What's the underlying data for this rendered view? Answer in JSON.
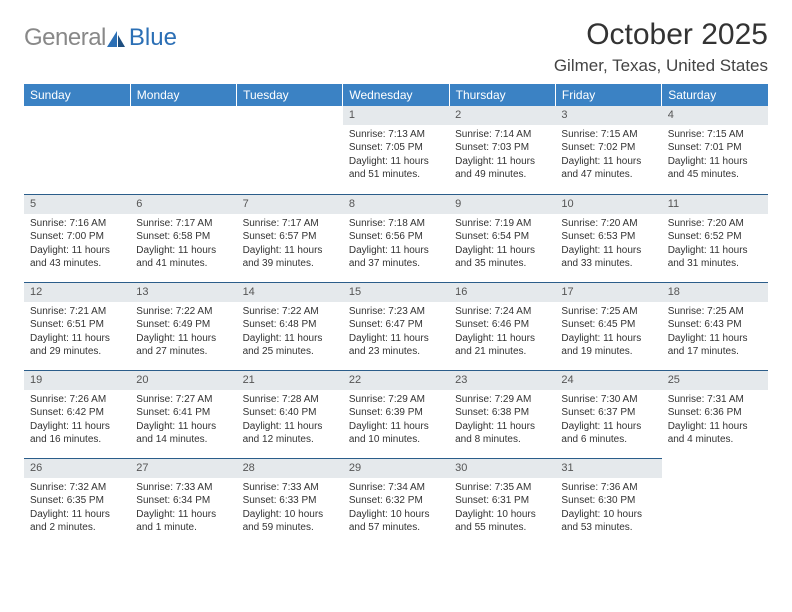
{
  "logo": {
    "text1": "General",
    "text2": "Blue"
  },
  "title": "October 2025",
  "location": "Gilmer, Texas, United States",
  "colors": {
    "header_bg": "#3b82c4",
    "header_text": "#ffffff",
    "daynum_bg": "#e5e9ec",
    "day_border": "#2b5d8a",
    "body_text": "#333333",
    "logo_gray": "#888888",
    "logo_blue": "#2b6fb5"
  },
  "weekdays": [
    "Sunday",
    "Monday",
    "Tuesday",
    "Wednesday",
    "Thursday",
    "Friday",
    "Saturday"
  ],
  "leading_blanks": 3,
  "days": [
    {
      "n": 1,
      "sunrise": "7:13 AM",
      "sunset": "7:05 PM",
      "daylight": "11 hours and 51 minutes."
    },
    {
      "n": 2,
      "sunrise": "7:14 AM",
      "sunset": "7:03 PM",
      "daylight": "11 hours and 49 minutes."
    },
    {
      "n": 3,
      "sunrise": "7:15 AM",
      "sunset": "7:02 PM",
      "daylight": "11 hours and 47 minutes."
    },
    {
      "n": 4,
      "sunrise": "7:15 AM",
      "sunset": "7:01 PM",
      "daylight": "11 hours and 45 minutes."
    },
    {
      "n": 5,
      "sunrise": "7:16 AM",
      "sunset": "7:00 PM",
      "daylight": "11 hours and 43 minutes."
    },
    {
      "n": 6,
      "sunrise": "7:17 AM",
      "sunset": "6:58 PM",
      "daylight": "11 hours and 41 minutes."
    },
    {
      "n": 7,
      "sunrise": "7:17 AM",
      "sunset": "6:57 PM",
      "daylight": "11 hours and 39 minutes."
    },
    {
      "n": 8,
      "sunrise": "7:18 AM",
      "sunset": "6:56 PM",
      "daylight": "11 hours and 37 minutes."
    },
    {
      "n": 9,
      "sunrise": "7:19 AM",
      "sunset": "6:54 PM",
      "daylight": "11 hours and 35 minutes."
    },
    {
      "n": 10,
      "sunrise": "7:20 AM",
      "sunset": "6:53 PM",
      "daylight": "11 hours and 33 minutes."
    },
    {
      "n": 11,
      "sunrise": "7:20 AM",
      "sunset": "6:52 PM",
      "daylight": "11 hours and 31 minutes."
    },
    {
      "n": 12,
      "sunrise": "7:21 AM",
      "sunset": "6:51 PM",
      "daylight": "11 hours and 29 minutes."
    },
    {
      "n": 13,
      "sunrise": "7:22 AM",
      "sunset": "6:49 PM",
      "daylight": "11 hours and 27 minutes."
    },
    {
      "n": 14,
      "sunrise": "7:22 AM",
      "sunset": "6:48 PM",
      "daylight": "11 hours and 25 minutes."
    },
    {
      "n": 15,
      "sunrise": "7:23 AM",
      "sunset": "6:47 PM",
      "daylight": "11 hours and 23 minutes."
    },
    {
      "n": 16,
      "sunrise": "7:24 AM",
      "sunset": "6:46 PM",
      "daylight": "11 hours and 21 minutes."
    },
    {
      "n": 17,
      "sunrise": "7:25 AM",
      "sunset": "6:45 PM",
      "daylight": "11 hours and 19 minutes."
    },
    {
      "n": 18,
      "sunrise": "7:25 AM",
      "sunset": "6:43 PM",
      "daylight": "11 hours and 17 minutes."
    },
    {
      "n": 19,
      "sunrise": "7:26 AM",
      "sunset": "6:42 PM",
      "daylight": "11 hours and 16 minutes."
    },
    {
      "n": 20,
      "sunrise": "7:27 AM",
      "sunset": "6:41 PM",
      "daylight": "11 hours and 14 minutes."
    },
    {
      "n": 21,
      "sunrise": "7:28 AM",
      "sunset": "6:40 PM",
      "daylight": "11 hours and 12 minutes."
    },
    {
      "n": 22,
      "sunrise": "7:29 AM",
      "sunset": "6:39 PM",
      "daylight": "11 hours and 10 minutes."
    },
    {
      "n": 23,
      "sunrise": "7:29 AM",
      "sunset": "6:38 PM",
      "daylight": "11 hours and 8 minutes."
    },
    {
      "n": 24,
      "sunrise": "7:30 AM",
      "sunset": "6:37 PM",
      "daylight": "11 hours and 6 minutes."
    },
    {
      "n": 25,
      "sunrise": "7:31 AM",
      "sunset": "6:36 PM",
      "daylight": "11 hours and 4 minutes."
    },
    {
      "n": 26,
      "sunrise": "7:32 AM",
      "sunset": "6:35 PM",
      "daylight": "11 hours and 2 minutes."
    },
    {
      "n": 27,
      "sunrise": "7:33 AM",
      "sunset": "6:34 PM",
      "daylight": "11 hours and 1 minute."
    },
    {
      "n": 28,
      "sunrise": "7:33 AM",
      "sunset": "6:33 PM",
      "daylight": "10 hours and 59 minutes."
    },
    {
      "n": 29,
      "sunrise": "7:34 AM",
      "sunset": "6:32 PM",
      "daylight": "10 hours and 57 minutes."
    },
    {
      "n": 30,
      "sunrise": "7:35 AM",
      "sunset": "6:31 PM",
      "daylight": "10 hours and 55 minutes."
    },
    {
      "n": 31,
      "sunrise": "7:36 AM",
      "sunset": "6:30 PM",
      "daylight": "10 hours and 53 minutes."
    }
  ],
  "labels": {
    "sunrise": "Sunrise: ",
    "sunset": "Sunset: ",
    "daylight": "Daylight: "
  }
}
